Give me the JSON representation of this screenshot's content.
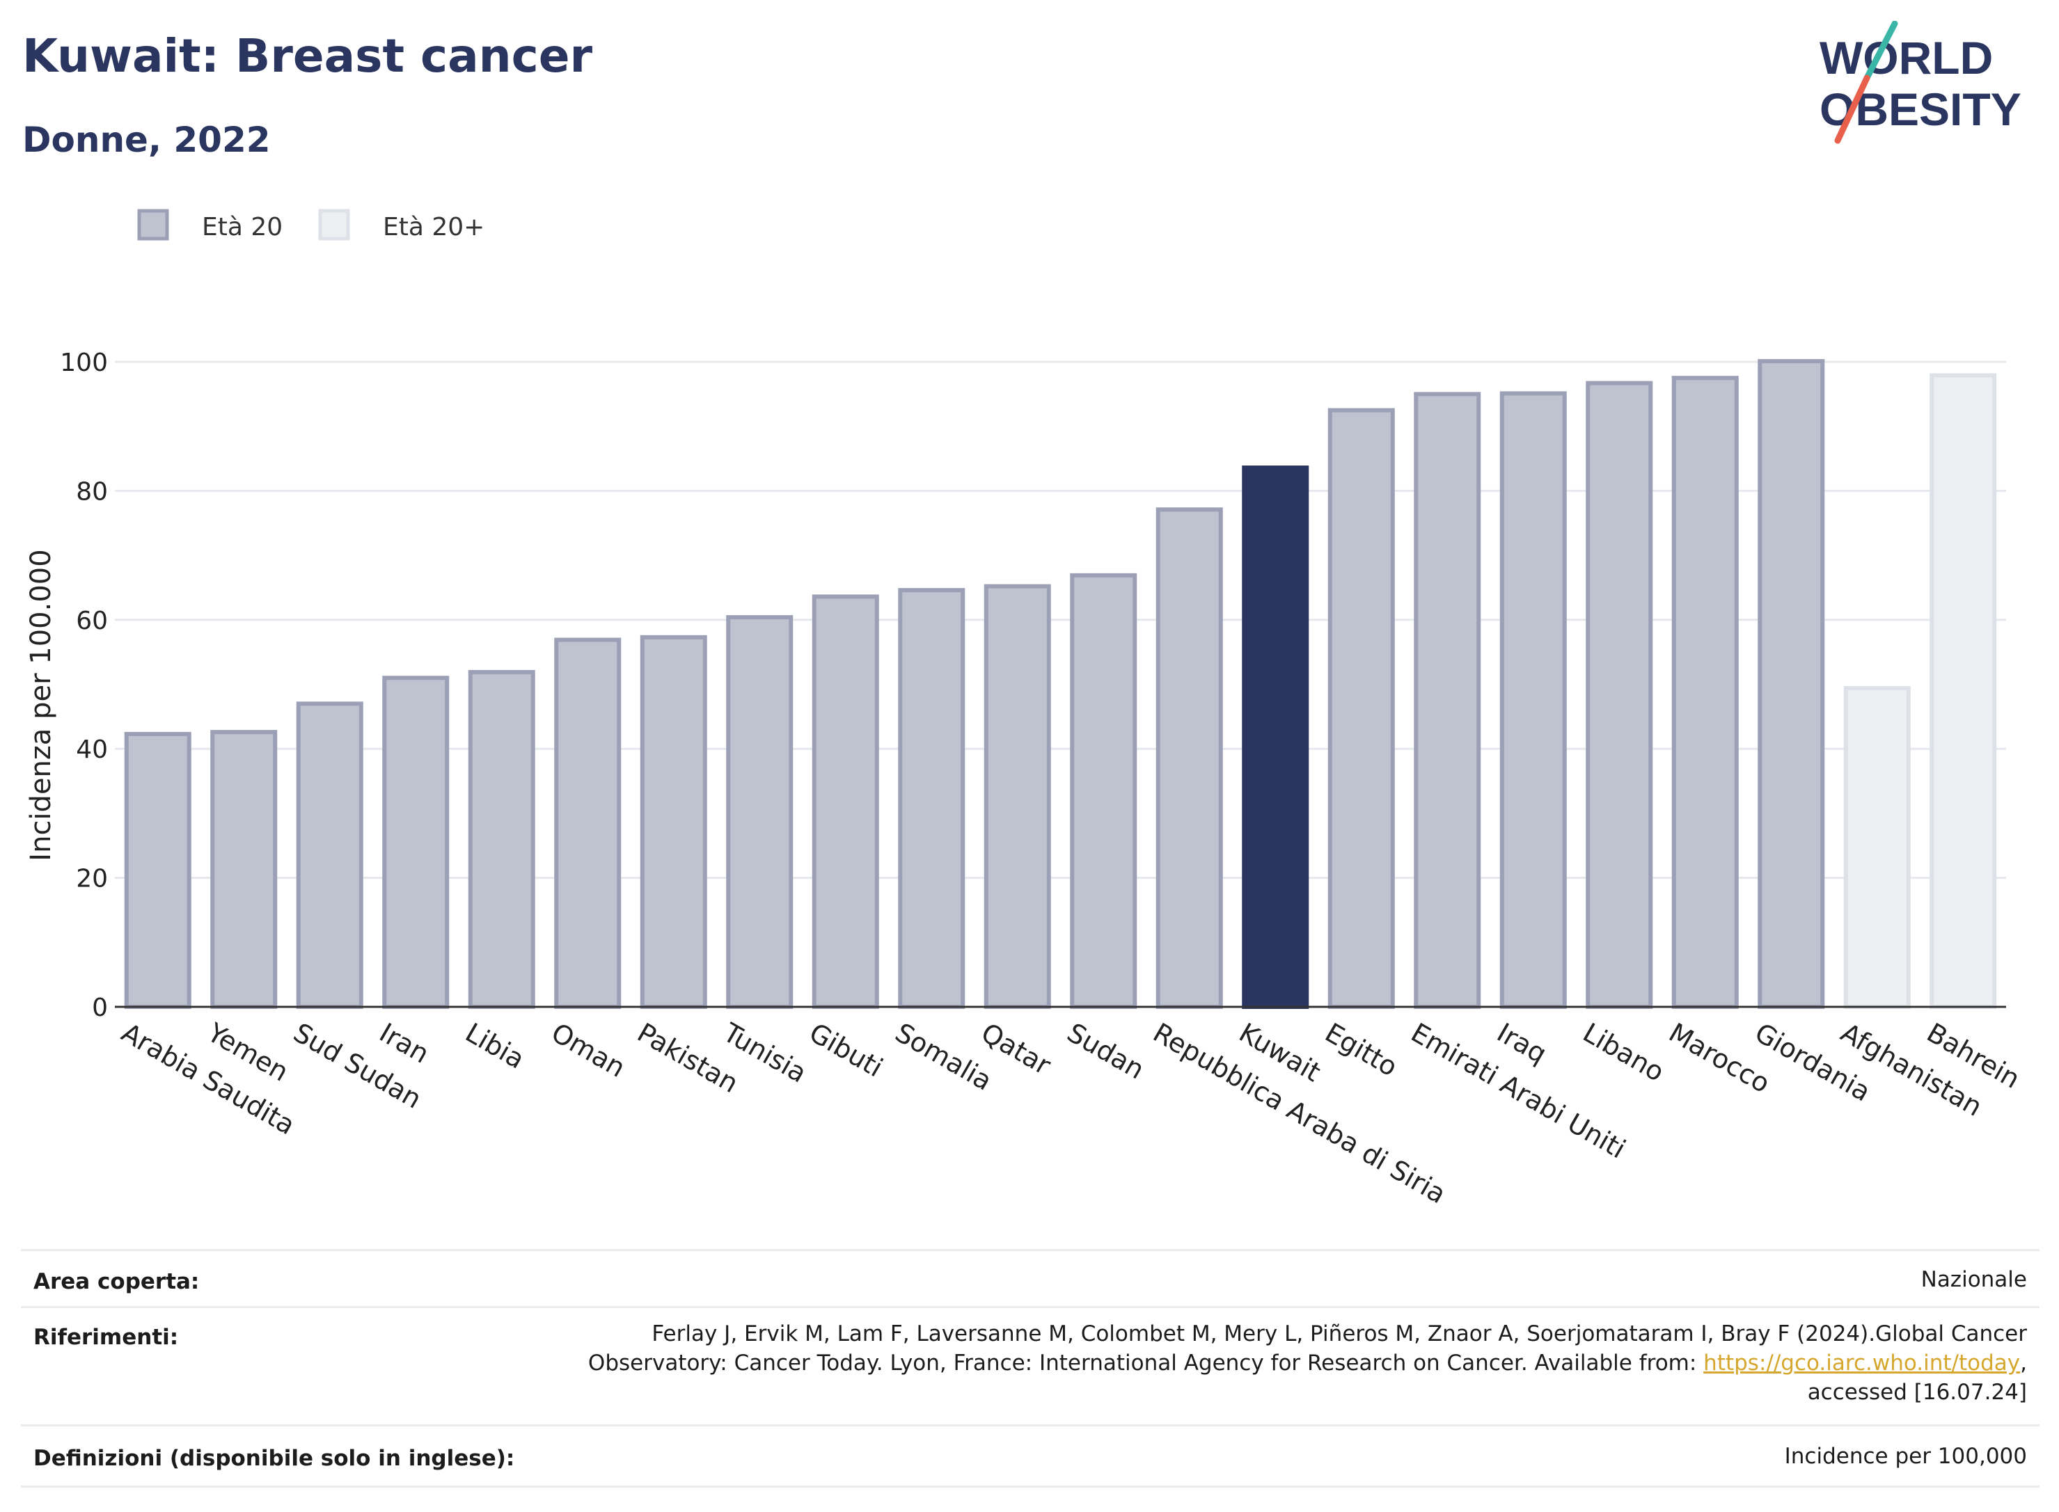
{
  "header": {
    "title": "Kuwait: Breast cancer",
    "subtitle": "Donne, 2022"
  },
  "logo": {
    "line1": "WORLD",
    "line2": "OBESITY"
  },
  "colors": {
    "age20": "#bfc2cf",
    "age20_edge": "#9ca0b6",
    "age20plus": "#eeeff3",
    "age20plus_edge": "#dfe1e8",
    "highlight": "#2a3560",
    "title": "#2a3560",
    "logo_slash_teal": "#3bb6a6",
    "logo_slash_red": "#e8604c",
    "link": "#d6a72c"
  },
  "chart_data": {
    "type": "bar",
    "title": "",
    "xlabel": "",
    "ylabel": "Incidenza per 100.000",
    "ylim": [
      0,
      100
    ],
    "yticks": [
      0,
      20,
      40,
      60,
      80,
      100
    ],
    "grid": true,
    "legend_position": "top-left",
    "legend": [
      {
        "name": "Età 20",
        "color_key": "age20"
      },
      {
        "name": "Età 20+",
        "color_key": "age20plus"
      }
    ],
    "highlight_category": "Kuwait",
    "categories": [
      "Arabia Saudita",
      "Yemen",
      "Sud Sudan",
      "Iran",
      "Libia",
      "Oman",
      "Pakistan",
      "Tunisia",
      "Gibuti",
      "Somalia",
      "Qatar",
      "Sudan",
      "Repubblica Araba di Siria",
      "Kuwait",
      "Egitto",
      "Emirati Arabi Uniti",
      "Iraq",
      "Libano",
      "Marocco",
      "Giordania",
      "Afghanistan",
      "Bahrein"
    ],
    "values": [
      42.3,
      42.6,
      47.0,
      51.0,
      51.9,
      56.9,
      57.3,
      60.4,
      63.6,
      64.6,
      65.2,
      66.9,
      77.1,
      83.6,
      92.5,
      95.0,
      95.1,
      96.7,
      97.5,
      100.1,
      49.4,
      97.9
    ],
    "series_membership": [
      "Età 20",
      "Età 20",
      "Età 20",
      "Età 20",
      "Età 20",
      "Età 20",
      "Età 20",
      "Età 20",
      "Età 20",
      "Età 20",
      "Età 20",
      "Età 20",
      "Età 20",
      "Età 20",
      "Età 20",
      "Età 20",
      "Età 20",
      "Età 20",
      "Età 20",
      "Età 20",
      "Età 20+",
      "Età 20+"
    ]
  },
  "footer": {
    "area_label": "Area coperta:",
    "area_value": "Nazionale",
    "ref_label": "Riferimenti:",
    "ref_line1": "Ferlay J, Ervik M, Lam F, Laversanne M, Colombet M, Mery L, Piñeros M, Znaor A, Soerjomataram I, Bray F (2024).Global Cancer",
    "ref_line2_prefix": "Observatory: Cancer Today. Lyon, France: International Agency for Research on Cancer. Available from: ",
    "ref_link": "https://gco.iarc.who.int/today",
    "ref_line2_suffix": ",",
    "ref_line3": "accessed [16.07.24]",
    "def_label": "Definizioni (disponibile solo in inglese):",
    "def_value": "Incidence per 100,000"
  }
}
